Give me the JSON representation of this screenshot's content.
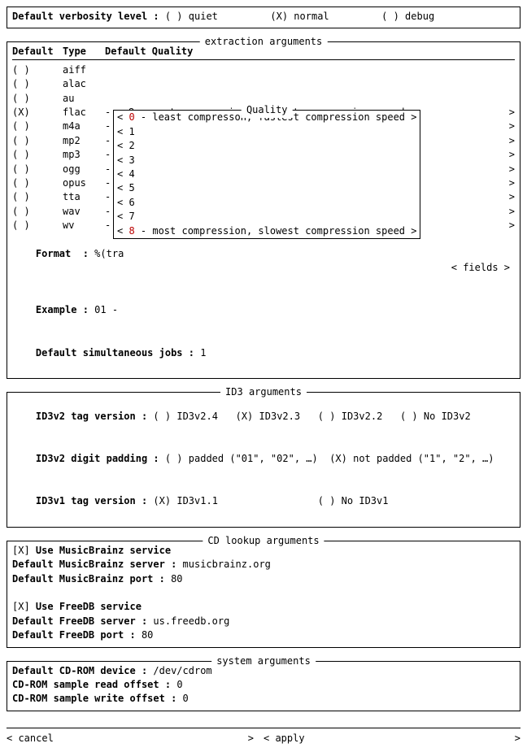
{
  "verbosity": {
    "label": "Default verbosity level :",
    "options": [
      {
        "mark": "( )",
        "label": "quiet"
      },
      {
        "mark": "(X)",
        "label": "normal"
      },
      {
        "mark": "( )",
        "label": "debug"
      }
    ]
  },
  "extraction": {
    "title": "extraction arguments",
    "headers": {
      "c1": "Default",
      "c2": "Type",
      "c3": "Default Quality"
    },
    "rows": [
      {
        "sel": "( )",
        "type": "aiff",
        "hasQual": false
      },
      {
        "sel": "( )",
        "type": "alac",
        "hasQual": false
      },
      {
        "sel": "( )",
        "type": "au",
        "hasQual": false
      },
      {
        "sel": "(X)",
        "type": "flac",
        "hasQual": true,
        "qual": "< 8 - most compression, slowest compression speed"
      },
      {
        "sel": "( )",
        "type": "m4a",
        "hasQual": true,
        "qual": ""
      },
      {
        "sel": "( )",
        "type": "mp2",
        "hasQual": true,
        "qual": ""
      },
      {
        "sel": "( )",
        "type": "mp3",
        "hasQual": true,
        "qual": ""
      },
      {
        "sel": "( )",
        "type": "ogg",
        "hasQual": true,
        "qual": ""
      },
      {
        "sel": "( )",
        "type": "opus",
        "hasQual": true,
        "qual": ""
      },
      {
        "sel": "( )",
        "type": "tta",
        "hasQual": true,
        "qual": ""
      },
      {
        "sel": "( )",
        "type": "wav",
        "hasQual": true,
        "qual": ""
      },
      {
        "sel": "( )",
        "type": "wv",
        "hasQual": true,
        "qual": ""
      }
    ],
    "quality_popup": {
      "title": "Quality",
      "items": [
        "< 0 - least compresson, fastest compression speed >",
        "< 1",
        "< 2",
        "< 3",
        "< 4",
        "< 5",
        "< 6",
        "< 7",
        "< 8 - most compression, slowest compression speed >"
      ],
      "highlight0_char": "0",
      "highlight8_char": "8"
    },
    "format_label": "Format  :",
    "format_value": "%(tra",
    "fields_btn": "< fields >",
    "example_label": "Example :",
    "example_value": "01 -",
    "jobs_label": "Default simultaneous jobs :",
    "jobs_value": "1"
  },
  "id3": {
    "title": "ID3 arguments",
    "v2_label": "ID3v2 tag version :",
    "v2_opts": [
      {
        "mark": "( )",
        "label": "ID3v2.4"
      },
      {
        "mark": "(X)",
        "label": "ID3v2.3"
      },
      {
        "mark": "( )",
        "label": "ID3v2.2"
      },
      {
        "mark": "( )",
        "label": "No ID3v2"
      }
    ],
    "pad_label": "ID3v2 digit padding :",
    "pad_opts": [
      {
        "mark": "( )",
        "label": "padded (\"01\", \"02\", …)"
      },
      {
        "mark": "(X)",
        "label": "not padded (\"1\", \"2\", …)"
      }
    ],
    "v1_label": "ID3v1 tag version :",
    "v1_opts": [
      {
        "mark": "(X)",
        "label": "ID3v1.1"
      },
      {
        "mark": "( )",
        "label": "No ID3v1"
      }
    ]
  },
  "cd": {
    "title": "CD lookup arguments",
    "mb_check": "[X]",
    "mb_label": "Use MusicBrainz service",
    "mb_server_label": "Default MusicBrainz server :",
    "mb_server": "musicbrainz.org",
    "mb_port_label": "Default MusicBrainz port :",
    "mb_port": "80",
    "fdb_check": "[X]",
    "fdb_label": "Use FreeDB service",
    "fdb_server_label": "Default FreeDB server :",
    "fdb_server": "us.freedb.org",
    "fdb_port_label": "Default FreeDB port :",
    "fdb_port": "80"
  },
  "sys": {
    "title": "system arguments",
    "dev_label": "Default CD-ROM device :",
    "dev": "/dev/cdrom",
    "ro_label": "CD-ROM sample read offset :",
    "ro": "0",
    "wo_label": "CD-ROM sample write offset :",
    "wo": "0"
  },
  "bottom": {
    "cancel": "< cancel",
    "cancel_r": ">",
    "apply": "< apply",
    "apply_r": ">"
  }
}
